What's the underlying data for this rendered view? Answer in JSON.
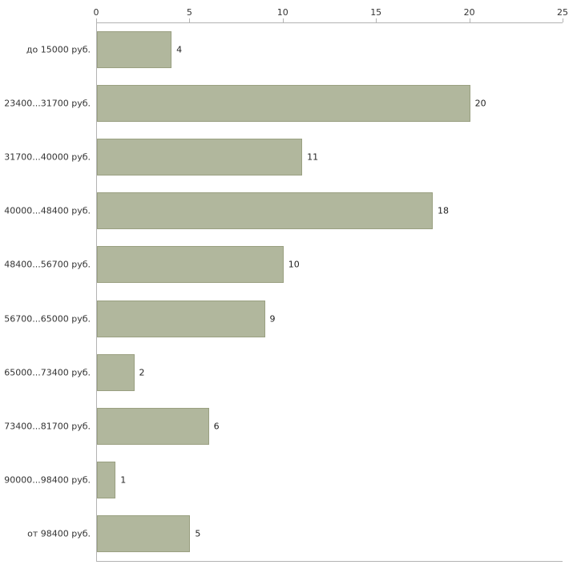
{
  "chart_data": {
    "type": "bar",
    "orientation": "horizontal",
    "title": "",
    "xlabel": "",
    "ylabel": "",
    "categories": [
      "до 15000 руб.",
      "23400...31700 руб.",
      "31700...40000 руб.",
      "40000...48400 руб.",
      "48400...56700 руб.",
      "56700...65000 руб.",
      "65000...73400 руб.",
      "73400...81700 руб.",
      "90000...98400 руб.",
      "от 98400 руб."
    ],
    "values": [
      4,
      20,
      11,
      18,
      10,
      9,
      2,
      6,
      1,
      5
    ],
    "x_ticks": [
      "0",
      "5",
      "10",
      "15",
      "20",
      "25"
    ],
    "x_tick_values": [
      0,
      5,
      10,
      15,
      20,
      25
    ],
    "xlim": [
      0,
      25
    ],
    "grid": false,
    "legend": false,
    "bar_color": "#b1b79d",
    "bar_border_color": "#9aa081",
    "axis_color": "#b3b3b3"
  }
}
